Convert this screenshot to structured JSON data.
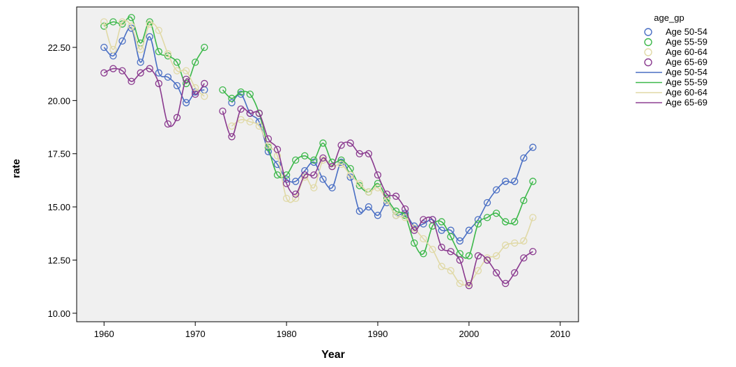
{
  "chart_data": {
    "type": "line",
    "xlabel": "Year",
    "ylabel": "rate",
    "xlim": [
      1957,
      2012
    ],
    "ylim": [
      9.6,
      24.4
    ],
    "xticks": [
      1960,
      1970,
      1980,
      1990,
      2000,
      2010
    ],
    "yticks": [
      10.0,
      12.5,
      15.0,
      17.5,
      20.0,
      22.5
    ],
    "ytick_labels": [
      "10.00",
      "12.50",
      "15.00",
      "17.50",
      "20.00",
      "22.50"
    ],
    "grid": false,
    "plot_background": "#f0f0f0",
    "legend": {
      "title": "age_gp",
      "placement": "right",
      "marker_entries": [
        "Age 50-54",
        "Age 55-59",
        "Age 60-64",
        "Age 65-69"
      ],
      "line_entries": [
        "Age 50-54",
        "Age 55-59",
        "Age 60-64",
        "Age 65-69"
      ]
    },
    "x": [
      1960,
      1961,
      1962,
      1963,
      1964,
      1965,
      1966,
      1967,
      1968,
      1969,
      1970,
      1971,
      1972,
      1973,
      1974,
      1975,
      1976,
      1977,
      1978,
      1979,
      1980,
      1981,
      1982,
      1983,
      1984,
      1985,
      1986,
      1987,
      1988,
      1989,
      1990,
      1991,
      1992,
      1993,
      1994,
      1995,
      1996,
      1997,
      1998,
      1999,
      2000,
      2001,
      2002,
      2003,
      2004,
      2005,
      2006,
      2007
    ],
    "series": [
      {
        "name": "Age 50-54",
        "color": "#4a6fc4",
        "values": [
          22.5,
          22.1,
          22.8,
          23.4,
          21.8,
          23.0,
          21.3,
          21.1,
          20.7,
          19.9,
          20.4,
          20.5,
          null,
          null,
          19.9,
          20.3,
          19.4,
          19.0,
          17.6,
          17.0,
          16.3,
          16.2,
          16.7,
          17.1,
          16.3,
          15.9,
          17.1,
          16.4,
          14.8,
          15.0,
          14.6,
          15.2,
          14.6,
          14.7,
          14.1,
          14.2,
          14.4,
          13.9,
          13.9,
          13.4,
          13.9,
          14.4,
          15.2,
          15.8,
          16.2,
          16.2,
          17.3,
          17.8
        ]
      },
      {
        "name": "Age 55-59",
        "color": "#3cb84a",
        "values": [
          23.5,
          23.7,
          23.6,
          23.9,
          22.7,
          23.7,
          22.3,
          22.1,
          21.8,
          20.8,
          21.8,
          22.5,
          null,
          20.5,
          20.1,
          20.4,
          20.3,
          19.4,
          17.8,
          16.5,
          16.5,
          17.2,
          17.4,
          17.2,
          18.0,
          17.1,
          17.2,
          16.8,
          16.0,
          15.7,
          16.1,
          15.4,
          14.8,
          14.6,
          13.3,
          12.8,
          14.1,
          14.3,
          13.6,
          12.8,
          12.7,
          14.2,
          14.5,
          14.7,
          14.3,
          14.3,
          15.3,
          16.2
        ]
      },
      {
        "name": "Age 60-64",
        "color": "#e0d9a6",
        "values": [
          23.7,
          22.4,
          23.7,
          23.5,
          22.4,
          23.6,
          23.3,
          22.2,
          21.4,
          21.4,
          20.6,
          20.2,
          null,
          null,
          18.8,
          19.1,
          19.0,
          18.8,
          17.9,
          17.4,
          15.4,
          15.4,
          16.4,
          15.9,
          17.2,
          16.9,
          17.0,
          16.5,
          16.1,
          15.7,
          15.9,
          15.3,
          14.6,
          14.5,
          14.0,
          13.5,
          13.0,
          12.2,
          12.0,
          11.4,
          11.4,
          12.0,
          12.6,
          12.7,
          13.2,
          13.3,
          13.4,
          14.5
        ]
      },
      {
        "name": "Age 65-69",
        "color": "#8a3a8f",
        "values": [
          21.3,
          21.5,
          21.4,
          20.9,
          21.3,
          21.5,
          20.8,
          18.9,
          19.2,
          21.0,
          20.3,
          20.8,
          null,
          19.5,
          18.3,
          19.6,
          19.4,
          19.4,
          18.2,
          17.7,
          16.1,
          15.6,
          16.5,
          16.5,
          17.3,
          16.9,
          17.9,
          18.0,
          17.5,
          17.5,
          16.5,
          15.6,
          15.5,
          14.9,
          13.9,
          14.4,
          14.4,
          13.1,
          12.9,
          12.5,
          11.3,
          12.7,
          12.5,
          11.9,
          11.4,
          11.9,
          12.6,
          12.9
        ]
      }
    ]
  }
}
